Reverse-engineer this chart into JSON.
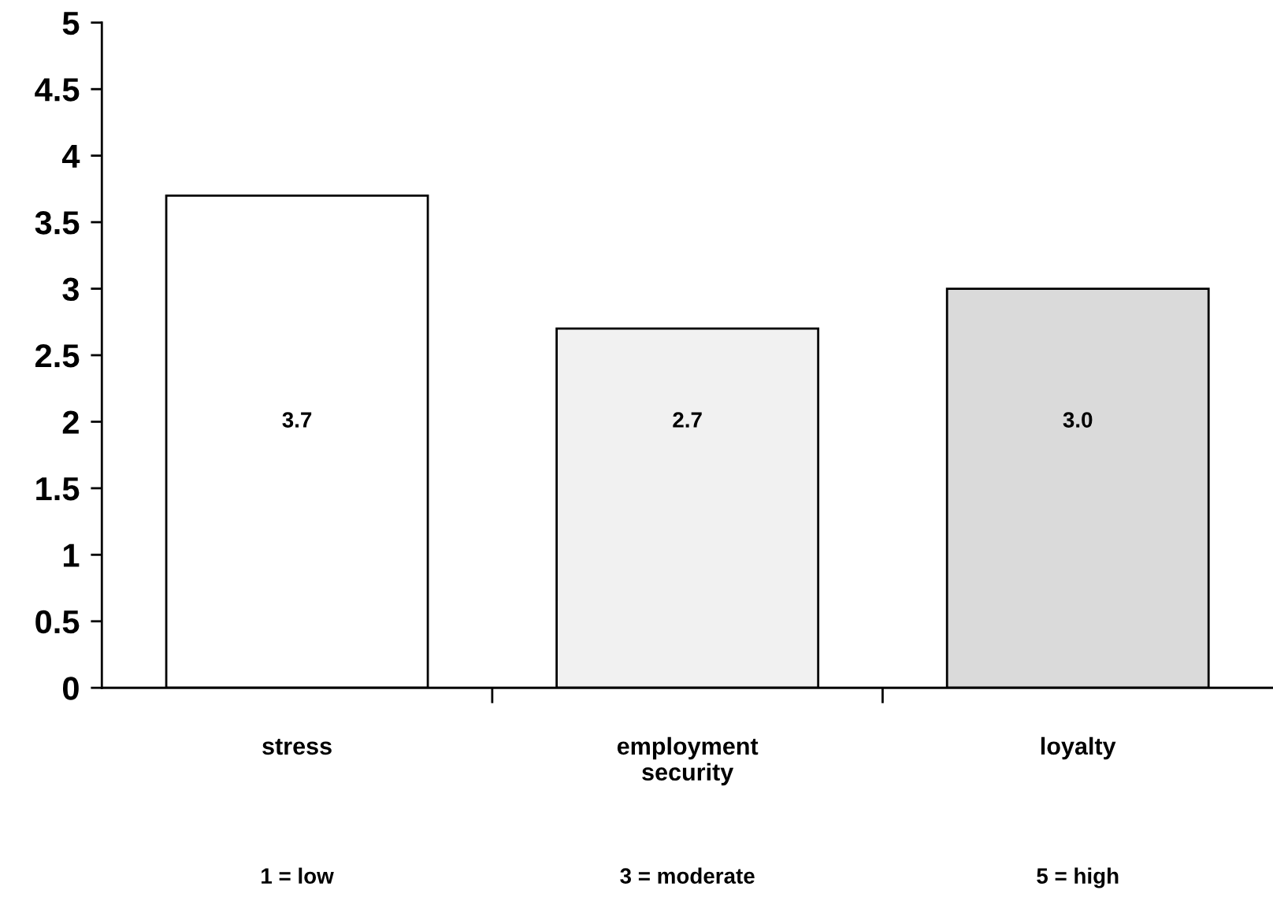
{
  "chart_data": {
    "type": "bar",
    "categories": [
      "stress",
      "employment\nsecurity",
      "loyalty"
    ],
    "values": [
      3.7,
      2.7,
      3.0
    ],
    "value_labels": [
      "3.7",
      "2.7",
      "3.0"
    ],
    "colors": [
      "#ffffff",
      "#f1f1f1",
      "#dadada"
    ],
    "ylim": [
      0,
      5
    ],
    "yticks": [
      0,
      0.5,
      1,
      1.5,
      2,
      2.5,
      3,
      3.5,
      4,
      4.5,
      5
    ],
    "grid": false,
    "annotations": [
      "1 = low",
      "3 = moderate",
      "5 = high"
    ]
  }
}
